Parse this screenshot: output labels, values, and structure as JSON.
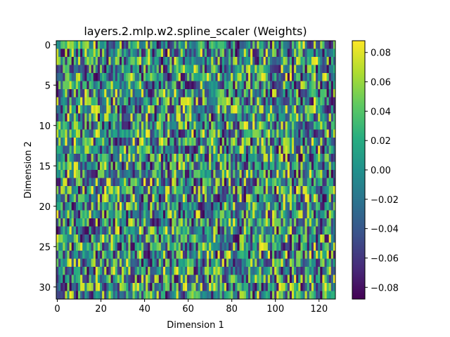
{
  "chart_data": {
    "type": "heatmap",
    "title": "layers.2.mlp.w2.spline_scaler (Weights)",
    "xlabel": "Dimension 1",
    "ylabel": "Dimension 2",
    "columns": 128,
    "rows": 32,
    "xlim": [
      -0.5,
      127.5
    ],
    "ylim": [
      31.5,
      -0.5
    ],
    "x_ticks": [
      0,
      20,
      40,
      60,
      80,
      100,
      120
    ],
    "y_ticks": [
      0,
      5,
      10,
      15,
      20,
      25,
      30
    ],
    "colormap": "viridis",
    "value_range": [
      -0.088,
      0.088
    ],
    "colorbar_ticks": [
      {
        "value": 0.08,
        "label": "0.08"
      },
      {
        "value": 0.06,
        "label": "0.06"
      },
      {
        "value": 0.04,
        "label": "0.04"
      },
      {
        "value": 0.02,
        "label": "0.02"
      },
      {
        "value": 0.0,
        "label": "0.00"
      },
      {
        "value": -0.02,
        "label": "−0.02"
      },
      {
        "value": -0.04,
        "label": "−0.04"
      },
      {
        "value": -0.06,
        "label": "−0.06"
      },
      {
        "value": -0.08,
        "label": "−0.08"
      }
    ],
    "values_note_visible": false
  }
}
